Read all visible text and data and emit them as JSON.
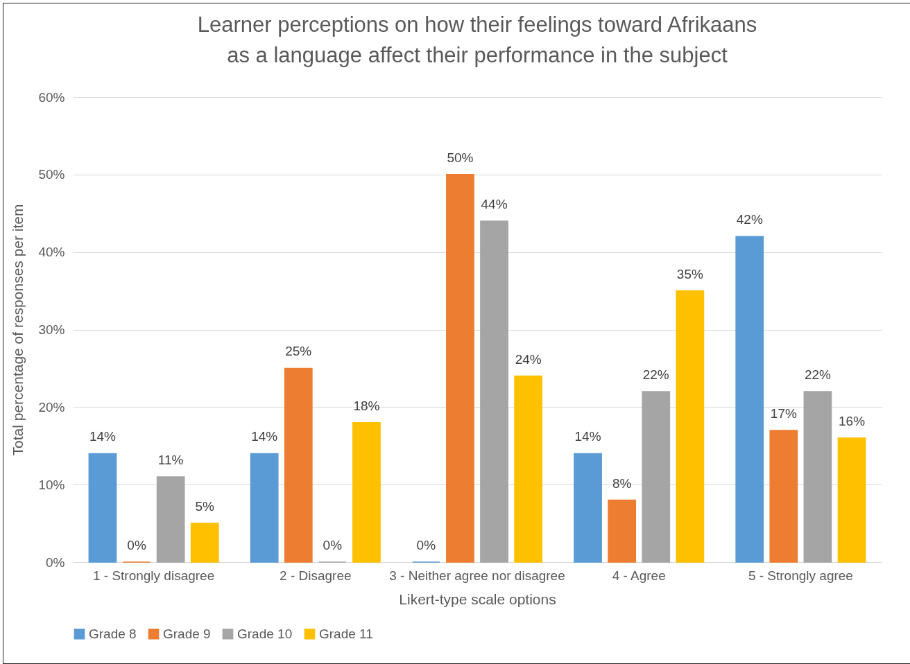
{
  "chart_data": {
    "type": "bar",
    "title": "Learner perceptions on how their feelings toward Afrikaans as a language affect their performance in the subject",
    "xlabel": "Likert-type scale options",
    "ylabel": "Total percentage of responses per item",
    "categories": [
      "1 - Strongly disagree",
      "2 - Disagree",
      "3 - Neither agree nor disagree",
      "4 - Agree",
      "5 - Strongly agree"
    ],
    "series": [
      {
        "name": "Grade 8",
        "color": "#5b9bd5",
        "values": [
          14,
          14,
          0,
          14,
          42
        ],
        "value_labels": [
          "14%",
          "14%",
          "0%",
          "14%",
          "42%"
        ]
      },
      {
        "name": "Grade 9",
        "color": "#ed7d31",
        "values": [
          0,
          25,
          50,
          8,
          17
        ],
        "value_labels": [
          "0%",
          "25%",
          "50%",
          "8%",
          "17%"
        ]
      },
      {
        "name": "Grade 10",
        "color": "#a5a5a5",
        "values": [
          11,
          0,
          44,
          22,
          22
        ],
        "value_labels": [
          "11%",
          "0%",
          "44%",
          "22%",
          "22%"
        ]
      },
      {
        "name": "Grade 11",
        "color": "#ffc000",
        "values": [
          5,
          18,
          24,
          35,
          16
        ],
        "value_labels": [
          "5%",
          "18%",
          "24%",
          "35%",
          "16%"
        ]
      }
    ],
    "ylim": [
      0,
      60
    ],
    "yticks": [
      {
        "value": 0,
        "label": "0%"
      },
      {
        "value": 10,
        "label": "10%"
      },
      {
        "value": 20,
        "label": "20%"
      },
      {
        "value": 30,
        "label": "30%"
      },
      {
        "value": 40,
        "label": "40%"
      },
      {
        "value": 50,
        "label": "50%"
      },
      {
        "value": 60,
        "label": "60%"
      }
    ],
    "grid": "y",
    "legend": "bottom"
  }
}
